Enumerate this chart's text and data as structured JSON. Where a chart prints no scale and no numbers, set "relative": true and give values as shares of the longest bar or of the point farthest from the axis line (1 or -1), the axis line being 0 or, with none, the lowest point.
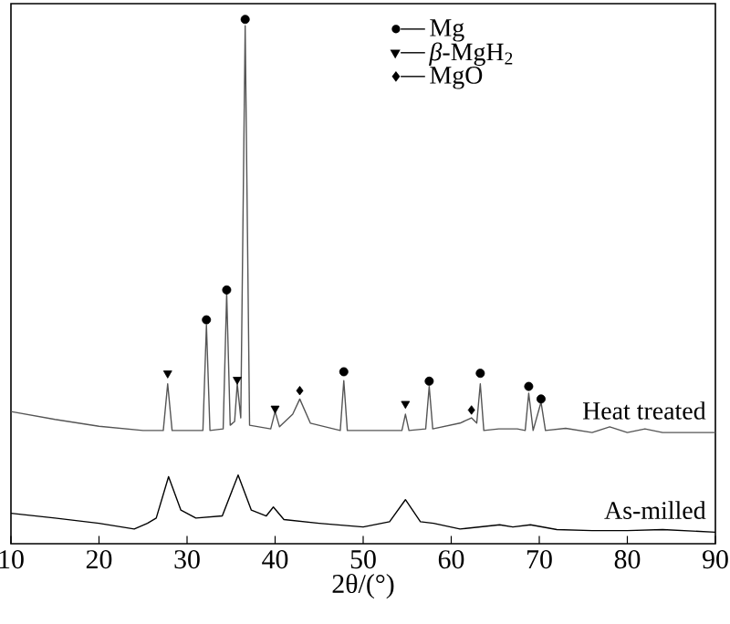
{
  "chart_data": {
    "type": "line",
    "relative": true,
    "xlabel": "2θ/(°)",
    "xlim": [
      10,
      90
    ],
    "xticks": [
      10,
      20,
      30,
      40,
      50,
      60,
      70,
      80,
      90
    ],
    "tick_labels": "x",
    "legend": "top right",
    "series": [
      {
        "name": "Heat treated",
        "color": "#555555",
        "x": [
          10,
          15,
          20,
          25,
          27.3,
          27.8,
          28.3,
          31.8,
          32.2,
          32.6,
          34.1,
          34.5,
          34.9,
          35.4,
          35.7,
          36.1,
          36.6,
          37.1,
          39.5,
          40,
          40.5,
          42,
          42.8,
          44,
          47.4,
          47.8,
          48.2,
          54.4,
          54.8,
          55.2,
          57.1,
          57.5,
          57.9,
          61,
          62.3,
          62.9,
          63.3,
          63.7,
          65.4,
          67.5,
          68.4,
          68.8,
          69.3,
          70.2,
          70.7,
          73,
          76,
          78,
          80,
          82,
          84,
          90
        ],
        "values": [
          0.252,
          0.237,
          0.224,
          0.216,
          0.216,
          0.305,
          0.216,
          0.216,
          0.417,
          0.216,
          0.219,
          0.477,
          0.226,
          0.233,
          0.305,
          0.24,
          0.988,
          0.226,
          0.219,
          0.252,
          0.223,
          0.247,
          0.276,
          0.23,
          0.216,
          0.311,
          0.216,
          0.216,
          0.247,
          0.216,
          0.219,
          0.3,
          0.219,
          0.23,
          0.24,
          0.23,
          0.305,
          0.216,
          0.219,
          0.219,
          0.216,
          0.287,
          0.216,
          0.27,
          0.216,
          0.22,
          0.212,
          0.223,
          0.212,
          0.219,
          0.212,
          0.212
        ]
      },
      {
        "name": "As-milled",
        "color": "#000000",
        "x": [
          10,
          15,
          20,
          24,
          25.5,
          26.5,
          27.9,
          29.3,
          31,
          34,
          35.8,
          37.3,
          39,
          39.8,
          41,
          45,
          50,
          53,
          54.8,
          56.5,
          58,
          61,
          65.5,
          67,
          69,
          72,
          76,
          80,
          84,
          90
        ],
        "values": [
          0.058,
          0.049,
          0.039,
          0.028,
          0.039,
          0.049,
          0.128,
          0.064,
          0.049,
          0.053,
          0.131,
          0.064,
          0.053,
          0.07,
          0.046,
          0.039,
          0.032,
          0.042,
          0.084,
          0.042,
          0.039,
          0.028,
          0.036,
          0.032,
          0.036,
          0.027,
          0.025,
          0.025,
          0.027,
          0.022
        ]
      },
      {
        "name": "Mg",
        "type": "scatter",
        "marker": "circle",
        "color": "#000000",
        "x": [
          32.2,
          34.5,
          36.6,
          47.8,
          57.5,
          63.3,
          68.8,
          70.2
        ],
        "values": [
          0.427,
          0.484,
          1.0,
          0.328,
          0.31,
          0.325,
          0.3,
          0.276
        ]
      },
      {
        "name": "*β*-MgH$_{2}$",
        "type": "scatter",
        "marker": "triangle",
        "color": "#000000",
        "x": [
          27.8,
          35.7,
          40,
          54.8
        ],
        "values": [
          0.325,
          0.313,
          0.258,
          0.267
        ]
      },
      {
        "name": "MgO",
        "type": "scatter",
        "marker": "diamond",
        "color": "#000000",
        "x": [
          42.8,
          62.3
        ],
        "values": [
          0.292,
          0.255
        ]
      }
    ]
  }
}
